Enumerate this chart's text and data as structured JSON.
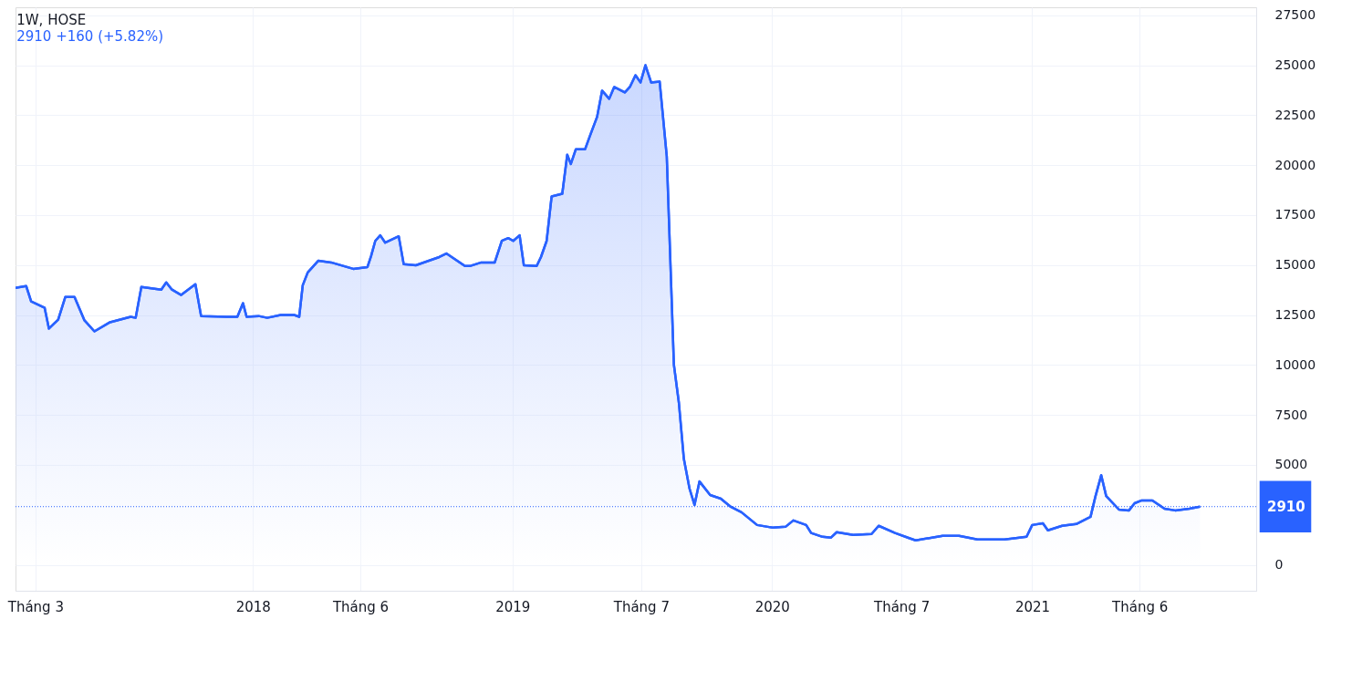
{
  "chart_data": {
    "type": "area",
    "title": "1W, HOSE",
    "subtitle": "2910  +160 (+5.82%)",
    "x": [
      "2017-02-01",
      "2017-02-16",
      "2017-02-23",
      "2017-03-14",
      "2017-03-20",
      "2017-04-02",
      "2017-04-12",
      "2017-04-25",
      "2017-05-09",
      "2017-05-23",
      "2017-06-14",
      "2017-07-13",
      "2017-07-20",
      "2017-07-28",
      "2017-08-25",
      "2017-09-01",
      "2017-09-09",
      "2017-09-22",
      "2017-10-12",
      "2017-10-20",
      "2017-11-25",
      "2017-12-10",
      "2017-12-18",
      "2017-12-23",
      "2018-01-09",
      "2018-01-21",
      "2018-02-09",
      "2018-02-28",
      "2018-03-07",
      "2018-03-12",
      "2018-03-19",
      "2018-04-03",
      "2018-04-21",
      "2018-05-22",
      "2018-06-11",
      "2018-06-16",
      "2018-06-22",
      "2018-06-29",
      "2018-07-06",
      "2018-07-25",
      "2018-08-01",
      "2018-08-18",
      "2018-09-20",
      "2018-09-30",
      "2018-10-26",
      "2018-11-02",
      "2018-11-18",
      "2018-12-07",
      "2018-12-17",
      "2018-12-26",
      "2019-01-02",
      "2019-01-11",
      "2019-01-17",
      "2019-02-04",
      "2019-02-10",
      "2019-02-18",
      "2019-02-25",
      "2019-03-12",
      "2019-03-19",
      "2019-03-24",
      "2019-03-31",
      "2019-04-13",
      "2019-04-20",
      "2019-04-30",
      "2019-05-07",
      "2019-05-17",
      "2019-05-24",
      "2019-06-08",
      "2019-06-15",
      "2019-06-23",
      "2019-06-30",
      "2019-07-07",
      "2019-07-15",
      "2019-07-27",
      "2019-08-06",
      "2019-08-16",
      "2019-08-23",
      "2019-08-30",
      "2019-09-07",
      "2019-09-14",
      "2019-09-21",
      "2019-10-06",
      "2019-10-21",
      "2019-11-04",
      "2019-11-19",
      "2019-12-11",
      "2019-12-26",
      "2020-01-02",
      "2020-01-20",
      "2020-01-31",
      "2020-02-18",
      "2020-02-25",
      "2020-03-12",
      "2020-03-24",
      "2020-04-01",
      "2020-04-24",
      "2020-05-20",
      "2020-05-30",
      "2020-06-22",
      "2020-07-10",
      "2020-07-21",
      "2020-08-13",
      "2020-08-28",
      "2020-09-20",
      "2020-10-16",
      "2020-11-23",
      "2020-12-14",
      "2020-12-24",
      "2021-01-01",
      "2021-01-16",
      "2021-01-23",
      "2021-02-12",
      "2021-03-04",
      "2021-03-24",
      "2021-03-31",
      "2021-04-08",
      "2021-04-15",
      "2021-05-03",
      "2021-05-17",
      "2021-05-25",
      "2021-06-04",
      "2021-06-19",
      "2021-07-06",
      "2021-07-21",
      "2021-08-10",
      "2021-08-25"
    ],
    "series": [
      {
        "color": "#2962ff",
        "values": [
          13860,
          13950,
          13180,
          12860,
          11820,
          12270,
          13400,
          13400,
          12230,
          11680,
          12140,
          12410,
          12360,
          13900,
          13770,
          14130,
          13770,
          13500,
          14040,
          12450,
          12410,
          12410,
          13090,
          12410,
          12450,
          12360,
          12500,
          12500,
          12410,
          13990,
          14630,
          15220,
          15130,
          14810,
          14900,
          15440,
          16210,
          16490,
          16120,
          16440,
          15040,
          14990,
          15400,
          15580,
          14950,
          14950,
          15130,
          15130,
          16210,
          16350,
          16210,
          16490,
          14990,
          14950,
          15400,
          16210,
          18430,
          18570,
          20520,
          20060,
          20790,
          20790,
          21470,
          22420,
          23730,
          23320,
          23910,
          23640,
          23910,
          24500,
          24140,
          25000,
          24140,
          24180,
          20430,
          10010,
          8110,
          5300,
          3810,
          2990,
          4170,
          3490,
          3310,
          2900,
          2630,
          1990,
          1900,
          1860,
          1900,
          2220,
          1990,
          1590,
          1400,
          1360,
          1630,
          1490,
          1540,
          1950,
          1590,
          1360,
          1220,
          1360,
          1450,
          1450,
          1270,
          1270,
          1360,
          1400,
          1990,
          2080,
          1720,
          1950,
          2040,
          2400,
          3440,
          4480,
          3440,
          2760,
          2720,
          3080,
          3220,
          3220,
          2810,
          2720,
          2810,
          2910
        ]
      }
    ],
    "xlim": [
      "2017-02-01",
      "2021-11-12"
    ],
    "xticks": [
      {
        "value": "2017-03-01",
        "label": "Tháng 3"
      },
      {
        "value": "2018-01-01",
        "label": "2018"
      },
      {
        "value": "2018-06-01",
        "label": "Tháng 6"
      },
      {
        "value": "2019-01-01",
        "label": "2019"
      },
      {
        "value": "2019-07-01",
        "label": "Tháng 7"
      },
      {
        "value": "2020-01-01",
        "label": "2020"
      },
      {
        "value": "2020-07-01",
        "label": "Tháng 7"
      },
      {
        "value": "2021-01-01",
        "label": "2021"
      },
      {
        "value": "2021-06-01",
        "label": "Tháng 6"
      }
    ],
    "ylim": [
      -1300,
      27900
    ],
    "yticks": [
      0,
      5000,
      7500,
      10000,
      12500,
      15000,
      17500,
      20000,
      22500,
      25000,
      27500
    ],
    "ref_lines": [
      {
        "axis": "y",
        "value": 2910,
        "label": "2910",
        "color": "#2962ff",
        "line_style": "dotted"
      }
    ],
    "grid": true
  }
}
